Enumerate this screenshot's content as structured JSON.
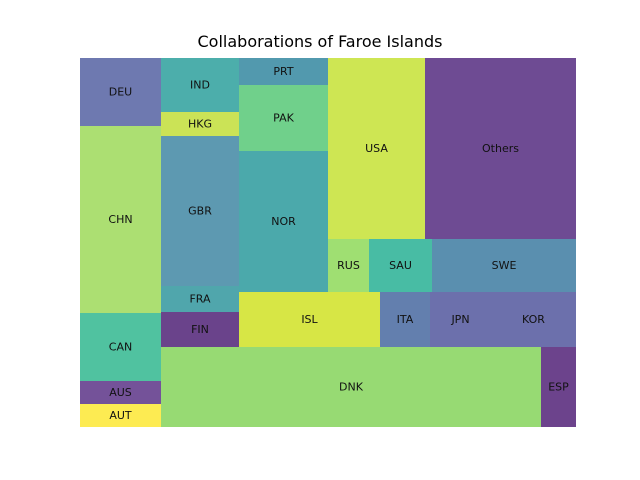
{
  "chart_data": {
    "type": "treemap",
    "title": "Collaborations of Faroe Islands",
    "cells": [
      {
        "label": "DEU",
        "value": 5.5,
        "color": "#5e6aa7"
      },
      {
        "label": "CHN",
        "value": 15.2,
        "color": "#a3dc63"
      },
      {
        "label": "CAN",
        "value": 5.5,
        "color": "#3dbb96"
      },
      {
        "label": "AUS",
        "value": 1.9,
        "color": "#653f8e"
      },
      {
        "label": "AUT",
        "value": 1.9,
        "color": "#fde93f"
      },
      {
        "label": "IND",
        "value": 4.2,
        "color": "#38a5a2"
      },
      {
        "label": "HKG",
        "value": 1.9,
        "color": "#c5e044"
      },
      {
        "label": "GBR",
        "value": 11.6,
        "color": "#4b8ea8"
      },
      {
        "label": "FRA",
        "value": 2.1,
        "color": "#3d9ca3"
      },
      {
        "label": "FIN",
        "value": 2.7,
        "color": "#5a2f7e"
      },
      {
        "label": "PRT",
        "value": 2.4,
        "color": "#3f8ea5"
      },
      {
        "label": "PAK",
        "value": 5.9,
        "color": "#60cb7e"
      },
      {
        "label": "NOR",
        "value": 12.6,
        "color": "#37a0a2"
      },
      {
        "label": "USA",
        "value": 17.4,
        "color": "#c9e340"
      },
      {
        "label": "Others",
        "value": 27.3,
        "color": "#5e3787"
      },
      {
        "label": "RUS",
        "value": 2.1,
        "color": "#95db63"
      },
      {
        "label": "SAU",
        "value": 3.4,
        "color": "#34b59a"
      },
      {
        "label": "SWE",
        "value": 7.6,
        "color": "#4883a6"
      },
      {
        "label": "ISL",
        "value": 7.7,
        "color": "#d3e331"
      },
      {
        "label": "ITA",
        "value": 2.8,
        "color": "#5271a5"
      },
      {
        "label": "JPN",
        "value": 3.5,
        "color": "#5c60a3"
      },
      {
        "label": "KOR",
        "value": 4.7,
        "color": "#5c60a3"
      },
      {
        "label": "DNK",
        "value": 41.4,
        "color": "#8cd664"
      },
      {
        "label": "ESP",
        "value": 3.7,
        "color": "#5c2f7f"
      }
    ]
  }
}
